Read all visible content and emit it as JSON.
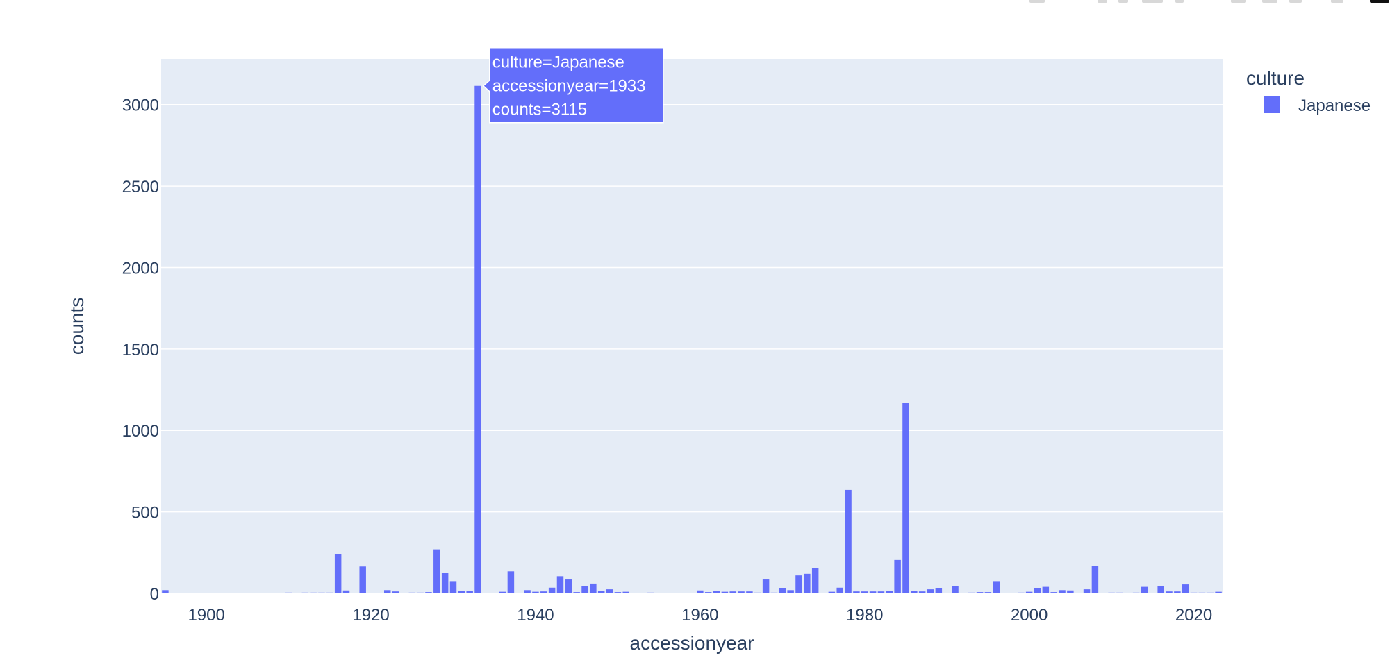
{
  "chart_data": {
    "type": "bar",
    "title": "",
    "xlabel": "accessionyear",
    "ylabel": "counts",
    "xlim": [
      1894.5,
      2023.5
    ],
    "ylim": [
      0,
      3280
    ],
    "xticks": [
      1900,
      1920,
      1940,
      1960,
      1980,
      2000,
      2020
    ],
    "yticks": [
      0,
      500,
      1000,
      1500,
      2000,
      2500,
      3000
    ],
    "grid": true,
    "legend": {
      "title": "culture",
      "placement": "top-right"
    },
    "series": [
      {
        "name": "Japanese",
        "color": "#636efa",
        "x": [
          1895,
          1910,
          1912,
          1913,
          1914,
          1915,
          1916,
          1917,
          1919,
          1922,
          1923,
          1925,
          1926,
          1927,
          1928,
          1929,
          1930,
          1931,
          1932,
          1933,
          1936,
          1937,
          1939,
          1940,
          1941,
          1942,
          1943,
          1944,
          1945,
          1946,
          1947,
          1948,
          1949,
          1950,
          1951,
          1954,
          1960,
          1961,
          1962,
          1963,
          1964,
          1965,
          1966,
          1967,
          1968,
          1969,
          1970,
          1971,
          1972,
          1973,
          1974,
          1976,
          1977,
          1978,
          1979,
          1980,
          1981,
          1982,
          1983,
          1984,
          1985,
          1986,
          1987,
          1988,
          1989,
          1991,
          1993,
          1994,
          1995,
          1996,
          1999,
          2000,
          2001,
          2002,
          2003,
          2004,
          2005,
          2007,
          2008,
          2010,
          2011,
          2013,
          2014,
          2016,
          2017,
          2018,
          2019,
          2020,
          2021,
          2022,
          2023
        ],
        "y": [
          20,
          5,
          5,
          5,
          5,
          5,
          240,
          18,
          165,
          20,
          12,
          5,
          5,
          8,
          270,
          125,
          75,
          15,
          15,
          3115,
          10,
          135,
          20,
          10,
          12,
          35,
          105,
          85,
          8,
          45,
          60,
          15,
          25,
          8,
          10,
          5,
          18,
          8,
          15,
          10,
          12,
          12,
          12,
          5,
          85,
          5,
          30,
          20,
          110,
          120,
          155,
          10,
          35,
          635,
          12,
          12,
          12,
          12,
          15,
          205,
          1170,
          15,
          12,
          25,
          30,
          45,
          5,
          8,
          8,
          75,
          5,
          10,
          30,
          40,
          8,
          20,
          18,
          25,
          170,
          5,
          5,
          5,
          40,
          45,
          12,
          12,
          55,
          5,
          5,
          5,
          10
        ]
      }
    ],
    "hover": {
      "lines": [
        "culture=Japanese",
        "accessionyear=1933",
        "counts=3115"
      ],
      "target_index": 19
    }
  }
}
